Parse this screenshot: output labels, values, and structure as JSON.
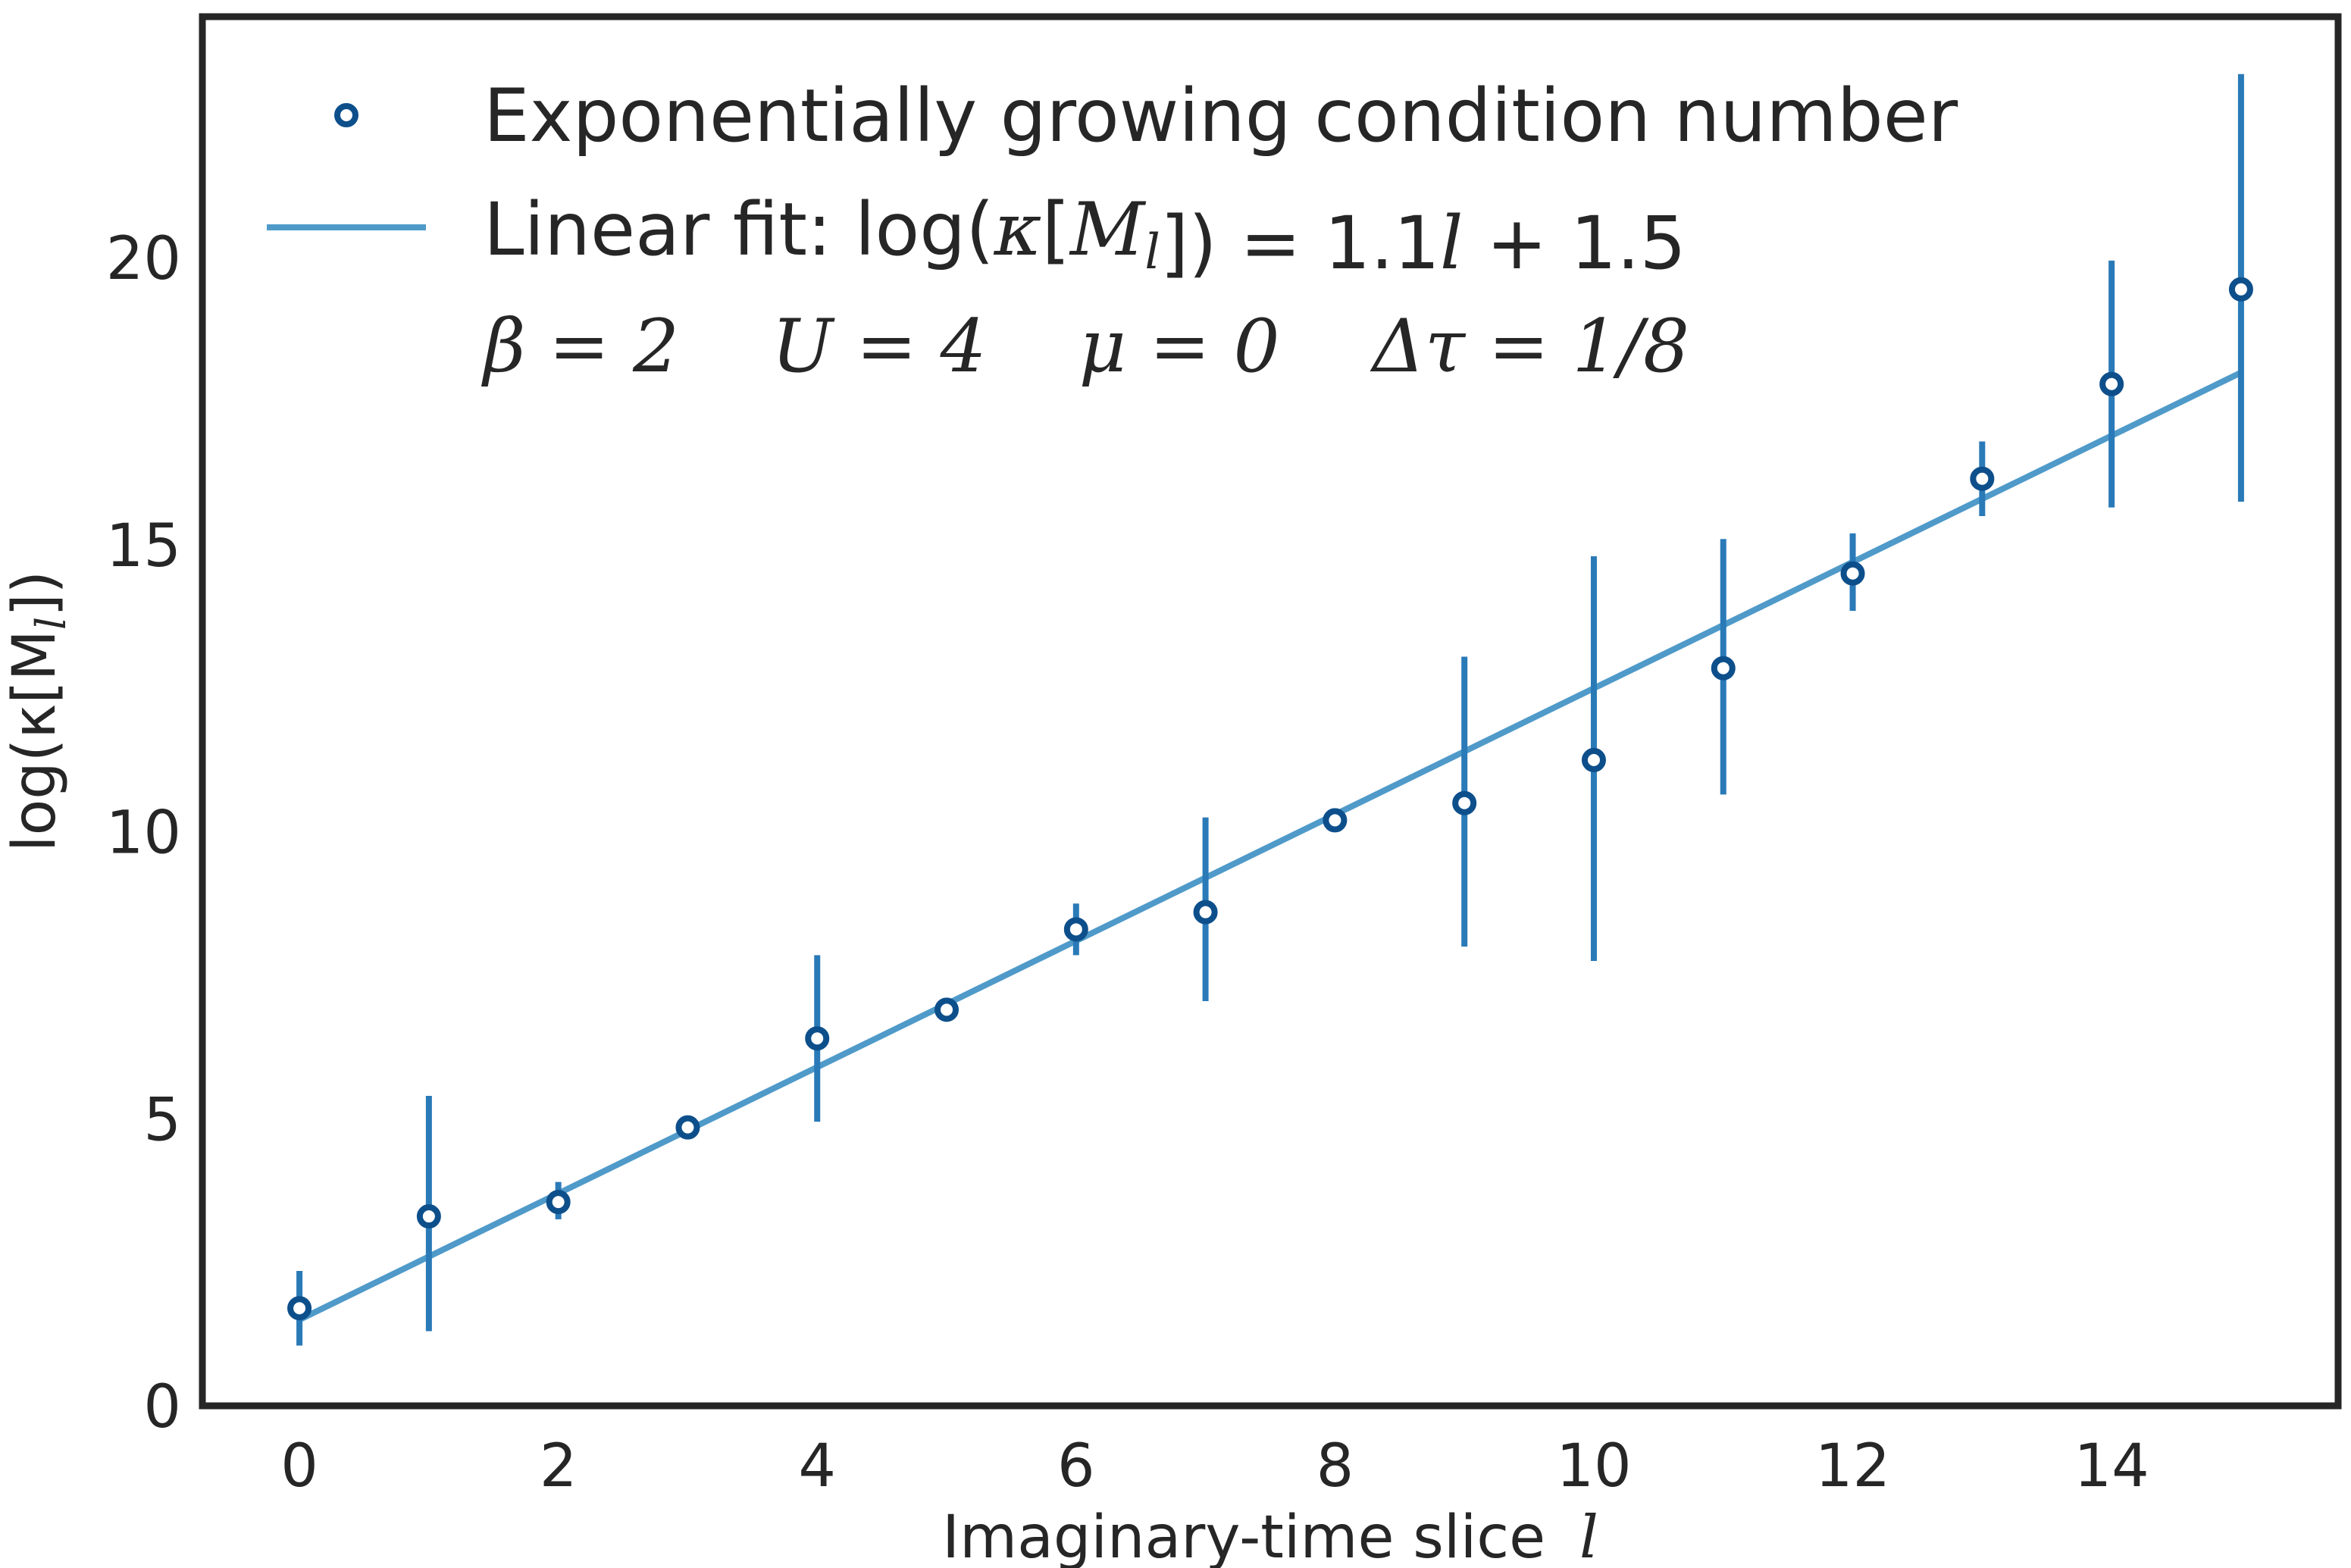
{
  "chart_data": {
    "type": "scatter",
    "xlabel": "Imaginary-time slice",
    "xlabel_var": "l",
    "ylabel": "log(κ[M",
    "ylabel_sub": "l",
    "ylabel_end": "])",
    "xlim": [
      -0.75,
      15.75
    ],
    "ylim": [
      0,
      24.2
    ],
    "xticks": [
      0,
      2,
      4,
      6,
      8,
      10,
      12,
      14
    ],
    "yticks": [
      0,
      5,
      10,
      15,
      20
    ],
    "grid": false,
    "legend_position": "top-left",
    "series": [
      {
        "name": "Exponentially growing condition number",
        "kind": "errorbar-points",
        "color": "#0d4f8b",
        "errorbar_color": "#2a7ab8",
        "x": [
          0,
          1,
          2,
          3,
          4,
          5,
          6,
          7,
          8,
          9,
          10,
          11,
          12,
          13,
          14,
          15
        ],
        "y": [
          1.7,
          3.3,
          3.55,
          4.85,
          6.4,
          6.9,
          8.3,
          8.6,
          10.2,
          10.5,
          11.25,
          12.85,
          14.5,
          16.15,
          17.8,
          19.45
        ],
        "yerr_low": [
          1.05,
          1.3,
          3.25,
          4.7,
          4.95,
          6.85,
          7.85,
          7.05,
          10.1,
          8.0,
          7.75,
          10.65,
          13.85,
          15.5,
          15.65,
          15.75
        ],
        "yerr_high": [
          2.35,
          5.4,
          3.9,
          5.0,
          7.85,
          7.0,
          8.75,
          10.25,
          10.35,
          13.05,
          14.8,
          15.1,
          15.2,
          16.8,
          19.95,
          23.2
        ]
      },
      {
        "name": "Linear fit: ",
        "name_math": "log(κ[M_l]) = 1.1l + 1.5",
        "kind": "line",
        "color": "#4f9ac9",
        "slope": 1.1,
        "intercept": 1.5,
        "x": [
          0,
          15
        ],
        "y": [
          1.5,
          18.0
        ]
      }
    ],
    "annotation": "β = 2    U = 4    μ = 0    Δτ = 1/8"
  }
}
